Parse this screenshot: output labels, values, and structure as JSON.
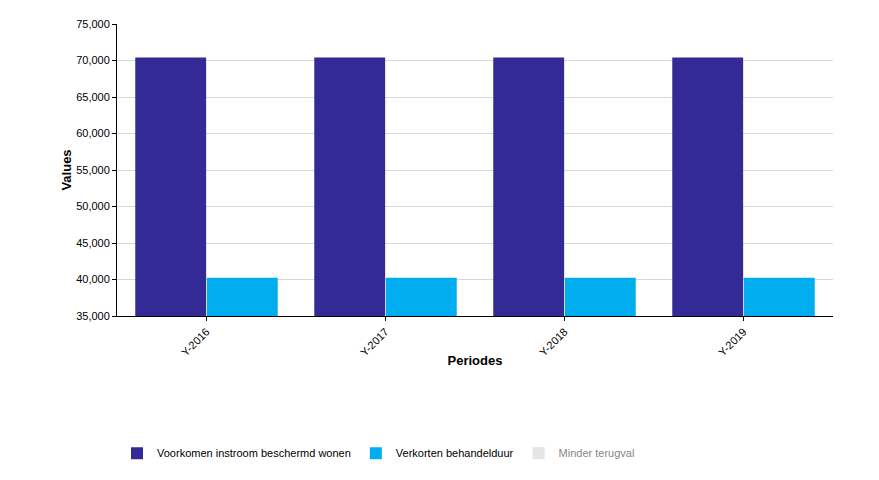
{
  "chart_data": {
    "type": "bar",
    "x_label": "Periodes",
    "y_label": "Values",
    "categories": [
      "Y-2016",
      "Y-2017",
      "Y-2018",
      "Y-2019"
    ],
    "series": [
      {
        "name": "Voorkomen instroom beschermd wonen",
        "color": "#332a96",
        "values": [
          70400,
          70400,
          70400,
          70400
        ]
      },
      {
        "name": "Verkorten behandelduur",
        "color": "#00aeef",
        "values": [
          40250,
          40250,
          40250,
          40250
        ]
      },
      {
        "name": "Minder terugval",
        "color": "#cccccc",
        "values": [
          null,
          null,
          null,
          null
        ]
      }
    ],
    "ylim": [
      35000,
      75000
    ],
    "yticks": [
      {
        "value": 35000,
        "label": "35,000"
      },
      {
        "value": 40000,
        "label": "40,000"
      },
      {
        "value": 45000,
        "label": "45,000"
      },
      {
        "value": 50000,
        "label": "50,000"
      },
      {
        "value": 55000,
        "label": "55,000"
      },
      {
        "value": 60000,
        "label": "60,000"
      },
      {
        "value": 65000,
        "label": "65,000"
      },
      {
        "value": 70000,
        "label": "70,000"
      },
      {
        "value": 75000,
        "label": "75,000"
      }
    ],
    "grid": true,
    "legend": "bottom"
  }
}
